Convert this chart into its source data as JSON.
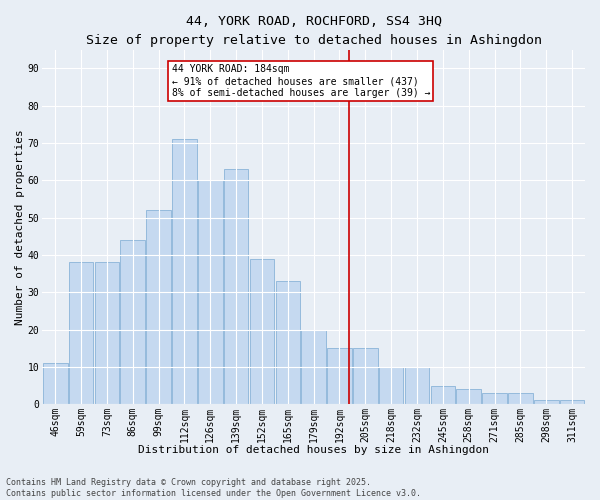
{
  "title": "44, YORK ROAD, ROCHFORD, SS4 3HQ",
  "subtitle": "Size of property relative to detached houses in Ashingdon",
  "xlabel": "Distribution of detached houses by size in Ashingdon",
  "ylabel": "Number of detached properties",
  "categories": [
    "46sqm",
    "59sqm",
    "73sqm",
    "86sqm",
    "99sqm",
    "112sqm",
    "126sqm",
    "139sqm",
    "152sqm",
    "165sqm",
    "179sqm",
    "192sqm",
    "205sqm",
    "218sqm",
    "232sqm",
    "245sqm",
    "258sqm",
    "271sqm",
    "285sqm",
    "298sqm",
    "311sqm"
  ],
  "values": [
    11,
    38,
    38,
    44,
    52,
    71,
    60,
    63,
    39,
    33,
    20,
    15,
    15,
    10,
    10,
    5,
    4,
    3,
    3,
    1,
    1
  ],
  "bar_color": "#c5d9f0",
  "bar_edge_color": "#8ab4d8",
  "background_color": "#e8eef5",
  "grid_color": "#ffffff",
  "vline_color": "#cc0000",
  "vline_x": 11.38,
  "annotation_text": "44 YORK ROAD: 184sqm\n← 91% of detached houses are smaller (437)\n8% of semi-detached houses are larger (39) →",
  "annotation_box_facecolor": "#ffffff",
  "annotation_box_edgecolor": "#cc0000",
  "ylim": [
    0,
    95
  ],
  "yticks": [
    0,
    10,
    20,
    30,
    40,
    50,
    60,
    70,
    80,
    90
  ],
  "title_fontsize": 9.5,
  "subtitle_fontsize": 8.5,
  "xlabel_fontsize": 8,
  "ylabel_fontsize": 8,
  "tick_fontsize": 7,
  "annot_fontsize": 7,
  "footer_fontsize": 6,
  "footer_line1": "Contains HM Land Registry data © Crown copyright and database right 2025.",
  "footer_line2": "Contains public sector information licensed under the Open Government Licence v3.0."
}
